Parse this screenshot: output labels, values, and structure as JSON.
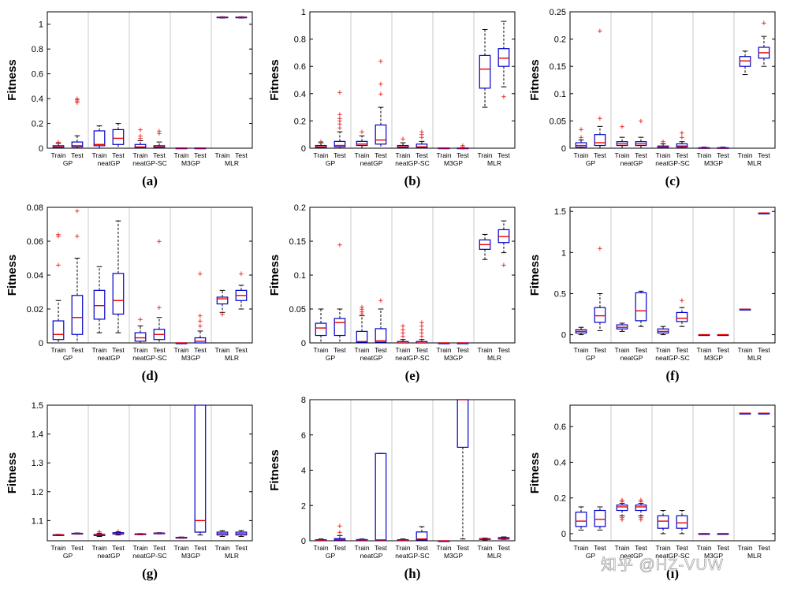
{
  "groups": [
    "GP",
    "neatGP",
    "neatGP-SC",
    "M3GP",
    "MLR"
  ],
  "sub_labels": [
    "Train",
    "Test"
  ],
  "ylabel": "Fitness",
  "colors": {
    "box": "#0000cc",
    "median": "#e60000",
    "outlier": "#e60000",
    "whisker": "#000000",
    "sep": "#c8c8c8",
    "axis": "#000000"
  },
  "watermark": "知乎 @HZ-VUW",
  "chart_data": [
    {
      "type": "box",
      "caption": "(a)",
      "ylim": [
        0,
        1.1
      ],
      "yticks": [
        0,
        0.2,
        0.4,
        0.6,
        0.8,
        1
      ],
      "ytick_labels": [
        "0",
        "0.2",
        "0.4",
        "0.6",
        "0.8",
        "1"
      ],
      "boxes": [
        {
          "q": [
            0,
            0.005,
            0.01,
            0.02,
            0.04
          ],
          "out": [
            0.05
          ]
        },
        {
          "q": [
            0,
            0.01,
            0.02,
            0.05,
            0.1
          ],
          "out": [
            0.37,
            0.38,
            0.39,
            0.4
          ]
        },
        {
          "q": [
            0,
            0.02,
            0.03,
            0.14,
            0.18
          ],
          "out": []
        },
        {
          "q": [
            0,
            0.03,
            0.08,
            0.15,
            0.2
          ],
          "out": []
        },
        {
          "q": [
            0,
            0.005,
            0.01,
            0.03,
            0.06
          ],
          "out": [
            0.08,
            0.1,
            0.15
          ]
        },
        {
          "q": [
            0,
            0.005,
            0.01,
            0.02,
            0.05
          ],
          "out": [
            0.12,
            0.14
          ]
        },
        {
          "q": [
            0,
            0,
            0.001,
            0.002,
            0.003
          ],
          "out": []
        },
        {
          "q": [
            0,
            0,
            0.001,
            0.002,
            0.003
          ],
          "out": []
        },
        {
          "q": [
            1.05,
            1.052,
            1.055,
            1.058,
            1.06
          ],
          "out": []
        },
        {
          "q": [
            1.05,
            1.052,
            1.055,
            1.058,
            1.06
          ],
          "out": []
        }
      ]
    },
    {
      "type": "box",
      "caption": "(b)",
      "ylim": [
        0,
        1
      ],
      "yticks": [
        0,
        0.2,
        0.4,
        0.6,
        0.8,
        1
      ],
      "ytick_labels": [
        "0",
        "0.2",
        "0.4",
        "0.6",
        "0.8",
        "1"
      ],
      "boxes": [
        {
          "q": [
            0,
            0.005,
            0.01,
            0.02,
            0.04
          ],
          "out": [
            0.05
          ]
        },
        {
          "q": [
            0,
            0.01,
            0.02,
            0.05,
            0.12
          ],
          "out": [
            0.15,
            0.18,
            0.2,
            0.22,
            0.25,
            0.41
          ]
        },
        {
          "q": [
            0,
            0.02,
            0.03,
            0.05,
            0.09
          ],
          "out": [
            0.12
          ]
        },
        {
          "q": [
            0,
            0.03,
            0.06,
            0.17,
            0.3
          ],
          "out": [
            0.4,
            0.47,
            0.64
          ]
        },
        {
          "q": [
            0,
            0.005,
            0.01,
            0.02,
            0.04
          ],
          "out": [
            0.07
          ]
        },
        {
          "q": [
            0,
            0.005,
            0.01,
            0.03,
            0.05
          ],
          "out": [
            0.08,
            0.1,
            0.12
          ]
        },
        {
          "q": [
            0,
            0,
            0.001,
            0.002,
            0.003
          ],
          "out": []
        },
        {
          "q": [
            0,
            0,
            0.001,
            0.002,
            0.003
          ],
          "out": [
            0.01,
            0.02
          ]
        },
        {
          "q": [
            0.3,
            0.44,
            0.58,
            0.68,
            0.87
          ],
          "out": []
        },
        {
          "q": [
            0.45,
            0.6,
            0.66,
            0.73,
            0.93
          ],
          "out": [
            0.38
          ]
        }
      ]
    },
    {
      "type": "box",
      "caption": "(c)",
      "ylim": [
        0,
        0.25
      ],
      "yticks": [
        0,
        0.05,
        0.1,
        0.15,
        0.2,
        0.25
      ],
      "ytick_labels": [
        "0",
        "0.05",
        "0.1",
        "0.15",
        "0.2",
        "0.25"
      ],
      "boxes": [
        {
          "q": [
            0,
            0.002,
            0.005,
            0.01,
            0.015
          ],
          "out": [
            0.02,
            0.035
          ]
        },
        {
          "q": [
            0,
            0.005,
            0.01,
            0.025,
            0.04
          ],
          "out": [
            0.055,
            0.215
          ]
        },
        {
          "q": [
            0,
            0.005,
            0.008,
            0.012,
            0.02
          ],
          "out": [
            0.04
          ]
        },
        {
          "q": [
            0,
            0.005,
            0.008,
            0.012,
            0.02
          ],
          "out": [
            0.05
          ]
        },
        {
          "q": [
            0,
            0.001,
            0.002,
            0.004,
            0.008
          ],
          "out": [
            0.012
          ]
        },
        {
          "q": [
            0,
            0.002,
            0.004,
            0.008,
            0.012
          ],
          "out": [
            0.02,
            0.028
          ]
        },
        {
          "q": [
            0,
            0,
            0.0005,
            0.001,
            0.002
          ],
          "out": []
        },
        {
          "q": [
            0,
            0,
            0.0005,
            0.001,
            0.002
          ],
          "out": []
        },
        {
          "q": [
            0.135,
            0.15,
            0.16,
            0.168,
            0.178
          ],
          "out": []
        },
        {
          "q": [
            0.15,
            0.165,
            0.175,
            0.185,
            0.205
          ],
          "out": [
            0.23
          ]
        }
      ]
    },
    {
      "type": "box",
      "caption": "(d)",
      "ylim": [
        0,
        0.08
      ],
      "yticks": [
        0,
        0.02,
        0.04,
        0.06,
        0.08
      ],
      "ytick_labels": [
        "0",
        "0.02",
        "0.04",
        "0.06",
        "0.08"
      ],
      "boxes": [
        {
          "q": [
            0,
            0.002,
            0.005,
            0.013,
            0.025
          ],
          "out": [
            0.046,
            0.063,
            0.064
          ]
        },
        {
          "q": [
            0,
            0.005,
            0.015,
            0.028,
            0.05
          ],
          "out": [
            0.063,
            0.078
          ]
        },
        {
          "q": [
            0.006,
            0.014,
            0.022,
            0.031,
            0.045
          ],
          "out": []
        },
        {
          "q": [
            0.006,
            0.017,
            0.025,
            0.041,
            0.072
          ],
          "out": []
        },
        {
          "q": [
            0,
            0.001,
            0.003,
            0.006,
            0.01
          ],
          "out": [
            0.014
          ]
        },
        {
          "q": [
            0,
            0.002,
            0.005,
            0.008,
            0.015
          ],
          "out": [
            0.021,
            0.06
          ]
        },
        {
          "q": [
            0,
            0,
            0,
            0,
            0
          ],
          "out": []
        },
        {
          "q": [
            0,
            0,
            0.001,
            0.003,
            0.007
          ],
          "out": [
            0.01,
            0.013,
            0.016,
            0.041
          ]
        },
        {
          "q": [
            0.018,
            0.023,
            0.026,
            0.027,
            0.031
          ],
          "out": [
            0.017
          ]
        },
        {
          "q": [
            0.02,
            0.025,
            0.028,
            0.031,
            0.034
          ],
          "out": [
            0.041
          ]
        }
      ]
    },
    {
      "type": "box",
      "caption": "(e)",
      "ylim": [
        0,
        0.2
      ],
      "yticks": [
        0,
        0.05,
        0.1,
        0.15,
        0.2
      ],
      "ytick_labels": [
        "0",
        "0.05",
        "0.1",
        "0.15",
        "0.2"
      ],
      "boxes": [
        {
          "q": [
            0,
            0.011,
            0.022,
            0.029,
            0.05
          ],
          "out": []
        },
        {
          "q": [
            0,
            0.011,
            0.03,
            0.036,
            0.05
          ],
          "out": [
            0.145
          ]
        },
        {
          "q": [
            0,
            0.001,
            0.002,
            0.017,
            0.04
          ],
          "out": [
            0.043,
            0.046,
            0.05,
            0.053
          ]
        },
        {
          "q": [
            0,
            0.001,
            0.003,
            0.021,
            0.05
          ],
          "out": [
            0.063
          ]
        },
        {
          "q": [
            0,
            0,
            0,
            0.002,
            0.005
          ],
          "out": [
            0.01,
            0.015,
            0.02,
            0.025
          ]
        },
        {
          "q": [
            0,
            0,
            0,
            0.002,
            0.005
          ],
          "out": [
            0.01,
            0.015,
            0.02,
            0.025,
            0.03
          ]
        },
        {
          "q": [
            0,
            0,
            0,
            0,
            0
          ],
          "out": []
        },
        {
          "q": [
            0,
            0,
            0,
            0,
            0
          ],
          "out": []
        },
        {
          "q": [
            0.123,
            0.138,
            0.145,
            0.152,
            0.16
          ],
          "out": []
        },
        {
          "q": [
            0.133,
            0.148,
            0.157,
            0.167,
            0.18
          ],
          "out": [
            0.115
          ]
        }
      ]
    },
    {
      "type": "box",
      "caption": "(f)",
      "ylim": [
        -0.1,
        1.55
      ],
      "yticks": [
        0,
        0.5,
        1,
        1.5
      ],
      "ytick_labels": [
        "0",
        "0.5",
        "1",
        "1.5"
      ],
      "boxes": [
        {
          "q": [
            0,
            0.02,
            0.04,
            0.06,
            0.09
          ],
          "out": []
        },
        {
          "q": [
            0.05,
            0.15,
            0.23,
            0.33,
            0.5
          ],
          "out": [
            1.05
          ]
        },
        {
          "q": [
            0.04,
            0.07,
            0.09,
            0.12,
            0.14
          ],
          "out": []
        },
        {
          "q": [
            0.1,
            0.17,
            0.29,
            0.51,
            0.53
          ],
          "out": []
        },
        {
          "q": [
            0,
            0.02,
            0.04,
            0.07,
            0.1
          ],
          "out": []
        },
        {
          "q": [
            0.1,
            0.16,
            0.2,
            0.27,
            0.33
          ],
          "out": [
            0.42
          ]
        },
        {
          "q": [
            0,
            0,
            0,
            0,
            0
          ],
          "out": []
        },
        {
          "q": [
            0,
            0,
            0,
            0,
            0
          ],
          "out": []
        },
        {
          "q": [
            0.31,
            0.31,
            0.31,
            0.31,
            0.31
          ],
          "out": []
        },
        {
          "q": [
            1.48,
            1.48,
            1.48,
            1.48,
            1.48
          ],
          "out": []
        }
      ]
    },
    {
      "type": "box",
      "caption": "(g)",
      "ylim": [
        1.03,
        1.5
      ],
      "yticks": [
        1.1,
        1.2,
        1.3,
        1.4,
        1.5
      ],
      "ytick_labels": [
        "1.1",
        "1.2",
        "1.3",
        "1.4",
        "1.5"
      ],
      "boxes": [
        {
          "q": [
            1.048,
            1.049,
            1.05,
            1.051,
            1.052
          ],
          "out": []
        },
        {
          "q": [
            1.053,
            1.054,
            1.055,
            1.056,
            1.057
          ],
          "out": []
        },
        {
          "q": [
            1.045,
            1.048,
            1.05,
            1.052,
            1.055
          ],
          "out": [
            1.058,
            1.062
          ]
        },
        {
          "q": [
            1.05,
            1.053,
            1.055,
            1.058,
            1.06
          ],
          "out": [
            1.063
          ]
        },
        {
          "q": [
            1.051,
            1.052,
            1.053,
            1.054,
            1.055
          ],
          "out": []
        },
        {
          "q": [
            1.054,
            1.055,
            1.056,
            1.057,
            1.058
          ],
          "out": []
        },
        {
          "q": [
            1.039,
            1.04,
            1.041,
            1.042,
            1.043
          ],
          "out": []
        },
        {
          "q": [
            1.05,
            1.06,
            1.1,
            1.5,
            1.5
          ],
          "out": []
        },
        {
          "q": [
            1.045,
            1.05,
            1.055,
            1.06,
            1.065
          ],
          "out": []
        },
        {
          "q": [
            1.045,
            1.05,
            1.055,
            1.06,
            1.065
          ],
          "out": []
        }
      ]
    },
    {
      "type": "box",
      "caption": "(h)",
      "ylim": [
        0,
        8
      ],
      "yticks": [
        0,
        2,
        4,
        6,
        8
      ],
      "ytick_labels": [
        "0",
        "2",
        "4",
        "6",
        "8"
      ],
      "boxes": [
        {
          "q": [
            0,
            0.02,
            0.04,
            0.06,
            0.1
          ],
          "out": []
        },
        {
          "q": [
            0,
            0.03,
            0.06,
            0.12,
            0.3
          ],
          "out": [
            0.5,
            0.85
          ]
        },
        {
          "q": [
            0,
            0.03,
            0.05,
            0.07,
            0.1
          ],
          "out": []
        },
        {
          "q": [
            0,
            0.02,
            0.05,
            4.95,
            4.95
          ],
          "out": []
        },
        {
          "q": [
            0,
            0.02,
            0.04,
            0.06,
            0.1
          ],
          "out": []
        },
        {
          "q": [
            0,
            0.05,
            0.1,
            0.5,
            0.8
          ],
          "out": []
        },
        {
          "q": [
            0,
            0,
            0,
            0,
            0
          ],
          "out": []
        },
        {
          "q": [
            0.1,
            5.3,
            8,
            8,
            8
          ],
          "out": []
        },
        {
          "q": [
            0.05,
            0.08,
            0.1,
            0.12,
            0.15
          ],
          "out": []
        },
        {
          "q": [
            0.08,
            0.1,
            0.15,
            0.18,
            0.22
          ],
          "out": []
        }
      ]
    },
    {
      "type": "box",
      "caption": "(i)",
      "ylim": [
        -0.04,
        0.72
      ],
      "yticks": [
        0,
        0.2,
        0.4,
        0.6
      ],
      "ytick_labels": [
        "0",
        "0.2",
        "0.4",
        "0.6"
      ],
      "boxes": [
        {
          "q": [
            0.02,
            0.04,
            0.07,
            0.12,
            0.15
          ],
          "out": []
        },
        {
          "q": [
            0.02,
            0.04,
            0.08,
            0.13,
            0.15
          ],
          "out": []
        },
        {
          "q": [
            0.1,
            0.13,
            0.15,
            0.16,
            0.17
          ],
          "out": [
            0.08,
            0.09,
            0.18,
            0.19
          ]
        },
        {
          "q": [
            0.1,
            0.13,
            0.15,
            0.16,
            0.17
          ],
          "out": [
            0.08,
            0.09,
            0.18,
            0.19
          ]
        },
        {
          "q": [
            0,
            0.03,
            0.07,
            0.1,
            0.13
          ],
          "out": []
        },
        {
          "q": [
            0,
            0.03,
            0.06,
            0.1,
            0.13
          ],
          "out": []
        },
        {
          "q": [
            0,
            0,
            0,
            0,
            0
          ],
          "out": []
        },
        {
          "q": [
            0,
            0,
            0,
            0,
            0
          ],
          "out": []
        },
        {
          "q": [
            0.675,
            0.675,
            0.675,
            0.675,
            0.675
          ],
          "out": []
        },
        {
          "q": [
            0.675,
            0.675,
            0.675,
            0.675,
            0.675
          ],
          "out": []
        }
      ]
    }
  ]
}
